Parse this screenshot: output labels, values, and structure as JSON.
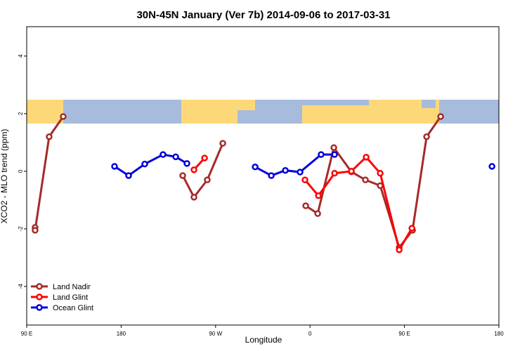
{
  "chart_data": {
    "type": "line",
    "title": "30N-45N January (Ver 7b)   2014-09-06 to 2017-03-31",
    "x_label": "Longitude",
    "y_label": "XCO2 - MLO trend (ppm)",
    "xlim": [
      90,
      540
    ],
    "ylim": [
      -5.34,
      5.02
    ],
    "xticks": [
      {
        "value": 90,
        "label": "90 E"
      },
      180,
      {
        "value": 270,
        "label": "90 W"
      },
      {
        "value": 360,
        "label": "0"
      },
      {
        "value": 450,
        "label": "90 E"
      },
      {
        "value": 540,
        "label": "180"
      }
    ],
    "yticks": [
      4,
      2,
      0,
      -2,
      -4
    ],
    "legend": "bottom-left",
    "series": [
      {
        "name": "Land Nadir",
        "color": "#a52a2a",
        "x": [
          98,
          98,
          111.4,
          124.8,
          null,
          238.7,
          249.4,
          262.1,
          276.9,
          null,
          355.9,
          367.3,
          382.7,
          399.4,
          412.8,
          426.9,
          445,
          457.7,
          471.1,
          484.5
        ],
        "values": [
          -1.95,
          -2.05,
          1.2,
          1.9,
          null,
          -0.15,
          -0.9,
          -0.3,
          0.97,
          null,
          -1.2,
          -1.47,
          0.82,
          -0.02,
          -0.3,
          -0.5,
          -2.65,
          -2.05,
          1.2,
          1.9
        ]
      },
      {
        "name": "Land Glint",
        "color": "#ff0000",
        "x": [
          249.4,
          259.5,
          null,
          355.2,
          368,
          383.4,
          399.4,
          413.5,
          426.9,
          445,
          457.1
        ],
        "values": [
          0.05,
          0.46,
          null,
          -0.3,
          -0.85,
          -0.07,
          0,
          0.49,
          -0.07,
          -2.73,
          -1.98
        ]
      },
      {
        "name": "Ocean Glint",
        "color": "#0000dd",
        "x": [
          173.7,
          187.1,
          202.5,
          219.9,
          232,
          242.7,
          null,
          307.7,
          323.1,
          336.5,
          350.5,
          370.6,
          383.4,
          null,
          533.4
        ],
        "values": [
          0.17,
          -0.15,
          0.25,
          0.58,
          0.5,
          0.27,
          null,
          0.15,
          -0.15,
          0.03,
          -0.03,
          0.58,
          0.58,
          null,
          0.17
        ]
      }
    ]
  }
}
